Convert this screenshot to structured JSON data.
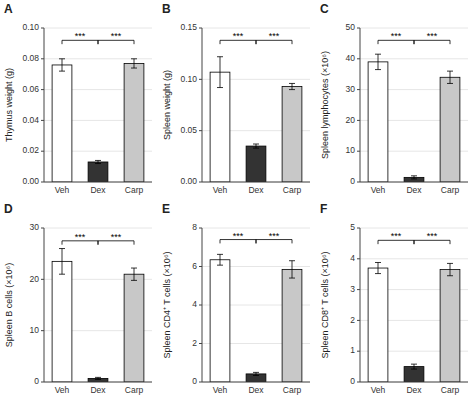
{
  "chart_data": [
    {
      "type": "bar",
      "title": "A",
      "ylabel": "Thymus weight (g)",
      "categories": [
        "Veh",
        "Dex",
        "Carp"
      ],
      "values": [
        0.076,
        0.013,
        0.077
      ],
      "errors": [
        0.004,
        0.001,
        0.003
      ],
      "colors": [
        "white",
        "#333333",
        "#c8c8c8"
      ],
      "ylim": [
        0,
        0.1
      ],
      "yticks": [
        {
          "value": 0.0,
          "label": "0.00"
        },
        0.02,
        0.04,
        0.06,
        0.08,
        {
          "value": 0.1,
          "label": "0.10"
        }
      ],
      "annotations": [
        {
          "text": "***",
          "from": "Veh",
          "to": "Dex",
          "y": 0.092
        },
        {
          "text": "***",
          "from": "Dex",
          "to": "Carp",
          "y": 0.092
        }
      ]
    },
    {
      "type": "bar",
      "title": "B",
      "ylabel": "Spleen weight (g)",
      "categories": [
        "Veh",
        "Dex",
        "Carp"
      ],
      "values": [
        0.107,
        0.035,
        0.093
      ],
      "errors": [
        0.015,
        0.002,
        0.003
      ],
      "colors": [
        "white",
        "#333333",
        "#c8c8c8"
      ],
      "ylim": [
        0,
        0.15
      ],
      "yticks": [
        {
          "value": 0.0,
          "label": "0.00"
        },
        0.05,
        {
          "value": 0.1,
          "label": "0.10"
        },
        0.15
      ],
      "annotations": [
        {
          "text": "***",
          "from": "Veh",
          "to": "Dex",
          "y": 0.138
        },
        {
          "text": "***",
          "from": "Dex",
          "to": "Carp",
          "y": 0.138
        }
      ]
    },
    {
      "type": "bar",
      "title": "C",
      "ylabel": "Spleen lymphocytes (×10⁶)",
      "categories": [
        "Veh",
        "Dex",
        "Carp"
      ],
      "values": [
        39,
        1.5,
        34
      ],
      "errors": [
        2.5,
        0.5,
        2.0
      ],
      "colors": [
        "white",
        "#333333",
        "#c8c8c8"
      ],
      "ylim": [
        0,
        50
      ],
      "yticks": [
        0,
        10,
        20,
        30,
        40,
        50
      ],
      "annotations": [
        {
          "text": "***",
          "from": "Veh",
          "to": "Dex",
          "y": 46
        },
        {
          "text": "***",
          "from": "Dex",
          "to": "Carp",
          "y": 46
        }
      ]
    },
    {
      "type": "bar",
      "title": "D",
      "ylabel": "Spleen B cells (×10⁶)",
      "categories": [
        "Veh",
        "Dex",
        "Carp"
      ],
      "values": [
        23.5,
        0.7,
        21
      ],
      "errors": [
        2.5,
        0.2,
        1.2
      ],
      "colors": [
        "white",
        "#333333",
        "#c8c8c8"
      ],
      "ylim": [
        0,
        30
      ],
      "yticks": [
        0,
        10,
        20,
        30
      ],
      "annotations": [
        {
          "text": "***",
          "from": "Veh",
          "to": "Dex",
          "y": 27.5
        },
        {
          "text": "***",
          "from": "Dex",
          "to": "Carp",
          "y": 27.5
        }
      ]
    },
    {
      "type": "bar",
      "title": "E",
      "ylabel": "Spleen CD4⁺ T cells (×10⁶)",
      "categories": [
        "Veh",
        "Dex",
        "Carp"
      ],
      "values": [
        6.35,
        0.42,
        5.85
      ],
      "errors": [
        0.28,
        0.08,
        0.45
      ],
      "colors": [
        "white",
        "#333333",
        "#c8c8c8"
      ],
      "ylim": [
        0,
        8
      ],
      "yticks": [
        0,
        2,
        4,
        6,
        8
      ],
      "annotations": [
        {
          "text": "***",
          "from": "Veh",
          "to": "Dex",
          "y": 7.4
        },
        {
          "text": "***",
          "from": "Dex",
          "to": "Carp",
          "y": 7.4
        }
      ]
    },
    {
      "type": "bar",
      "title": "F",
      "ylabel": "Spleen CD8⁺ T cells (×10⁶)",
      "categories": [
        "Veh",
        "Dex",
        "Carp"
      ],
      "values": [
        3.7,
        0.5,
        3.65
      ],
      "errors": [
        0.18,
        0.08,
        0.2
      ],
      "colors": [
        "white",
        "#333333",
        "#c8c8c8"
      ],
      "ylim": [
        0,
        5
      ],
      "yticks": [
        0,
        1,
        2,
        3,
        4,
        5
      ],
      "annotations": [
        {
          "text": "***",
          "from": "Veh",
          "to": "Dex",
          "y": 4.6
        },
        {
          "text": "***",
          "from": "Dex",
          "to": "Carp",
          "y": 4.6
        }
      ]
    }
  ]
}
